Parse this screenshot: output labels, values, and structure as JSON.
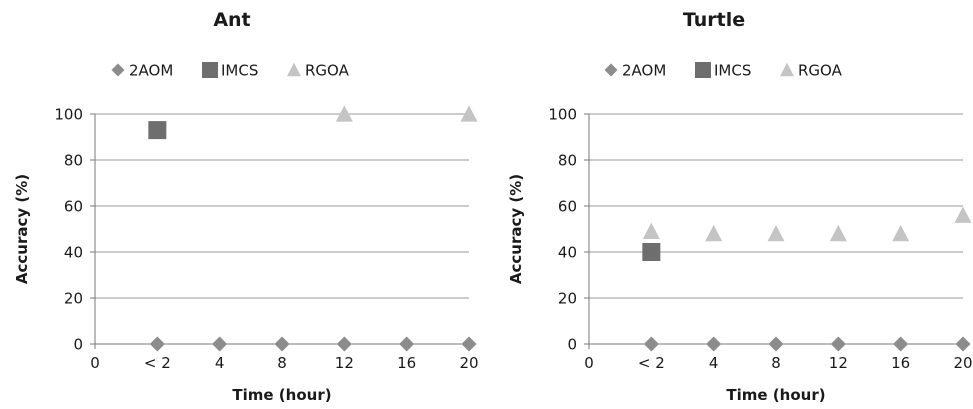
{
  "chart_data": [
    {
      "type": "scatter",
      "title": "Ant",
      "xlabel": "Time (hour)",
      "ylabel": "Accuracy (%)",
      "x_ticks": [
        "0",
        "< 2",
        "4",
        "8",
        "12",
        "16",
        "20"
      ],
      "xlim": [
        0,
        6
      ],
      "ylim": [
        0,
        100
      ],
      "y_ticks": [
        0,
        20,
        40,
        60,
        80,
        100
      ],
      "grid": "horizontal",
      "legend": "top",
      "series": [
        {
          "name": "2AOM",
          "marker": "diamond",
          "color": "#8c8c8c",
          "points": [
            {
              "x": "< 2",
              "y": 0
            },
            {
              "x": "4",
              "y": 0
            },
            {
              "x": "8",
              "y": 0
            },
            {
              "x": "12",
              "y": 0
            },
            {
              "x": "16",
              "y": 0
            },
            {
              "x": "20",
              "y": 0
            }
          ]
        },
        {
          "name": "IMCS",
          "marker": "square",
          "color": "#6e6e6e",
          "points": [
            {
              "x": "< 2",
              "y": 93
            }
          ]
        },
        {
          "name": "RGOA",
          "marker": "triangle",
          "color": "#c4c4c4",
          "points": [
            {
              "x": "12",
              "y": 100
            },
            {
              "x": "20",
              "y": 100
            }
          ]
        }
      ]
    },
    {
      "type": "scatter",
      "title": "Turtle",
      "xlabel": "Time (hour)",
      "ylabel": "Accuracy (%)",
      "x_ticks": [
        "0",
        "< 2",
        "4",
        "8",
        "12",
        "16",
        "20"
      ],
      "xlim": [
        0,
        6
      ],
      "ylim": [
        0,
        100
      ],
      "y_ticks": [
        0,
        20,
        40,
        60,
        80,
        100
      ],
      "grid": "horizontal",
      "legend": "top",
      "series": [
        {
          "name": "2AOM",
          "marker": "diamond",
          "color": "#8c8c8c",
          "points": [
            {
              "x": "< 2",
              "y": 0
            },
            {
              "x": "4",
              "y": 0
            },
            {
              "x": "8",
              "y": 0
            },
            {
              "x": "12",
              "y": 0
            },
            {
              "x": "16",
              "y": 0
            },
            {
              "x": "20",
              "y": 0
            }
          ]
        },
        {
          "name": "IMCS",
          "marker": "square",
          "color": "#6e6e6e",
          "points": [
            {
              "x": "< 2",
              "y": 40
            }
          ]
        },
        {
          "name": "RGOA",
          "marker": "triangle",
          "color": "#c4c4c4",
          "points": [
            {
              "x": "< 2",
              "y": 49
            },
            {
              "x": "4",
              "y": 48
            },
            {
              "x": "8",
              "y": 48
            },
            {
              "x": "12",
              "y": 48
            },
            {
              "x": "16",
              "y": 48
            },
            {
              "x": "20",
              "y": 56
            }
          ]
        }
      ]
    }
  ]
}
